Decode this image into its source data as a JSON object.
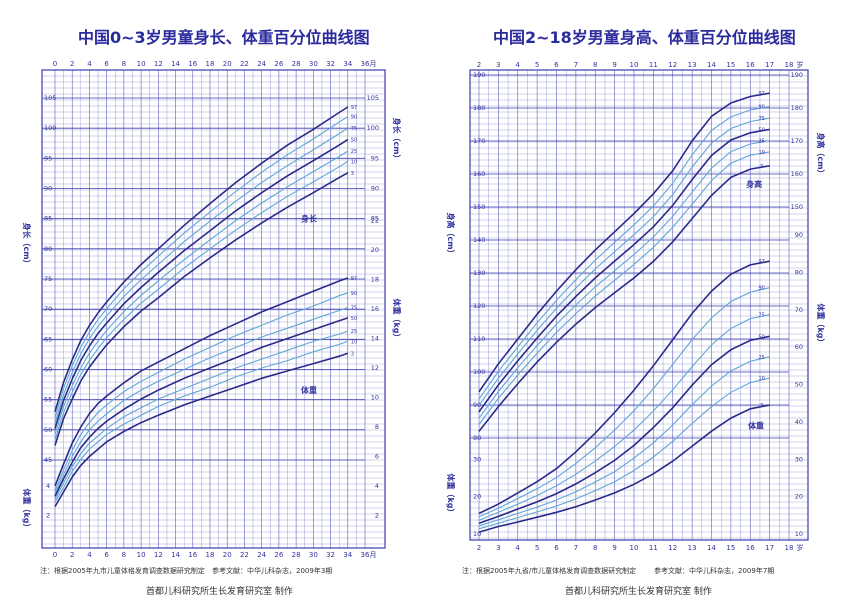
{
  "chart_data": [
    {
      "type": "line",
      "title": "中国0~3岁男童身长、体重百分位曲线图",
      "x_unit": "月",
      "x_ticks": [
        "0",
        "2",
        "4",
        "6",
        "8",
        "10",
        "12",
        "14",
        "16",
        "18",
        "20",
        "22",
        "24",
        "26",
        "28",
        "30",
        "32",
        "34",
        "36"
      ],
      "height_axis_title": "身长（cm）",
      "height_ticks": [
        "45",
        "50",
        "55",
        "60",
        "65",
        "70",
        "75",
        "80",
        "85",
        "90",
        "95",
        "100",
        "105"
      ],
      "weight_axis_title": "体重（kg）",
      "weight_ticks": [
        "2",
        "4",
        "6",
        "8",
        "10",
        "12",
        "14",
        "16",
        "18",
        "20",
        "22"
      ],
      "right_height_ticks": [
        "85",
        "90",
        "95",
        "100",
        "105"
      ],
      "right_weight_ticks": [
        "2",
        "4",
        "6",
        "8",
        "10",
        "12",
        "14",
        "16",
        "18",
        "20",
        "22"
      ],
      "height_series_label": "身长",
      "weight_series_label": "体重",
      "ages": [
        0,
        1,
        2,
        3,
        4,
        5,
        6,
        8,
        10,
        12,
        15,
        18,
        21,
        24,
        27,
        30,
        33,
        34
      ],
      "length_series": [
        {
          "name": "97",
          "values": [
            53.0,
            57.9,
            61.6,
            64.8,
            67.3,
            69.4,
            71.2,
            74.5,
            77.4,
            80.0,
            83.9,
            87.5,
            91.0,
            94.2,
            97.2,
            99.8,
            102.6,
            103.5
          ]
        },
        {
          "name": "90",
          "values": [
            52.0,
            56.9,
            60.6,
            63.7,
            66.2,
            68.3,
            70.1,
            73.4,
            76.2,
            78.8,
            82.6,
            86.1,
            89.5,
            92.7,
            95.6,
            98.2,
            101.0,
            101.9
          ]
        },
        {
          "name": "75",
          "values": [
            51.1,
            55.9,
            59.5,
            62.6,
            65.1,
            67.2,
            68.9,
            72.1,
            74.9,
            77.4,
            81.2,
            84.6,
            87.9,
            91.0,
            93.8,
            96.4,
            99.1,
            100.0
          ]
        },
        {
          "name": "50",
          "values": [
            50.2,
            54.9,
            58.4,
            61.5,
            63.9,
            66.0,
            67.7,
            70.9,
            73.6,
            76.1,
            79.7,
            83.0,
            86.3,
            89.3,
            92.1,
            94.6,
            97.2,
            98.1
          ]
        },
        {
          "name": "25",
          "values": [
            49.2,
            53.9,
            57.3,
            60.3,
            62.7,
            64.7,
            66.5,
            69.6,
            72.3,
            74.7,
            78.2,
            81.5,
            84.7,
            87.6,
            90.3,
            92.8,
            95.3,
            96.2
          ]
        },
        {
          "name": "10",
          "values": [
            48.3,
            52.9,
            56.2,
            59.2,
            61.5,
            63.5,
            65.3,
            68.3,
            71.0,
            73.3,
            76.8,
            80.0,
            83.1,
            86.0,
            88.7,
            91.1,
            93.6,
            94.5
          ]
        },
        {
          "name": "3",
          "values": [
            47.4,
            51.9,
            55.1,
            58.1,
            60.4,
            62.3,
            64.1,
            67.1,
            69.7,
            71.9,
            75.4,
            78.5,
            81.5,
            84.3,
            86.9,
            89.3,
            91.8,
            92.6
          ]
        }
      ],
      "weight_series": [
        {
          "name": "97",
          "values": [
            4.0,
            5.5,
            6.9,
            8.0,
            8.9,
            9.6,
            10.1,
            11.0,
            11.8,
            12.4,
            13.3,
            14.2,
            15.0,
            15.8,
            16.5,
            17.2,
            17.9,
            18.1
          ]
        },
        {
          "name": "90",
          "values": [
            3.7,
            5.1,
            6.4,
            7.5,
            8.3,
            9.0,
            9.5,
            10.4,
            11.1,
            11.7,
            12.6,
            13.4,
            14.2,
            14.9,
            15.6,
            16.2,
            16.9,
            17.1
          ]
        },
        {
          "name": "75",
          "values": [
            3.5,
            4.8,
            6.0,
            7.0,
            7.8,
            8.4,
            8.9,
            9.8,
            10.5,
            11.1,
            11.9,
            12.7,
            13.4,
            14.1,
            14.7,
            15.3,
            15.9,
            16.1
          ]
        },
        {
          "name": "50",
          "values": [
            3.3,
            4.5,
            5.6,
            6.6,
            7.3,
            7.9,
            8.4,
            9.2,
            9.9,
            10.5,
            11.3,
            12.0,
            12.7,
            13.4,
            14.0,
            14.6,
            15.2,
            15.4
          ]
        },
        {
          "name": "25",
          "values": [
            3.1,
            4.2,
            5.3,
            6.2,
            6.9,
            7.4,
            7.9,
            8.7,
            9.3,
            9.9,
            10.6,
            11.3,
            12.0,
            12.6,
            13.2,
            13.8,
            14.3,
            14.5
          ]
        },
        {
          "name": "10",
          "values": [
            2.9,
            3.9,
            5.0,
            5.8,
            6.5,
            7.0,
            7.5,
            8.2,
            8.8,
            9.4,
            10.1,
            10.7,
            11.4,
            12.0,
            12.5,
            13.1,
            13.6,
            13.8
          ]
        },
        {
          "name": "3",
          "values": [
            2.6,
            3.6,
            4.6,
            5.4,
            6.0,
            6.5,
            7.0,
            7.7,
            8.3,
            8.8,
            9.5,
            10.1,
            10.7,
            11.3,
            11.8,
            12.3,
            12.8,
            13.0
          ]
        }
      ],
      "note": "注：根据2005年九市儿童体格发育调查数据研究制定",
      "reference": "参考文献：中华儿科杂志，2009年3期"
    },
    {
      "type": "line",
      "title": "中国2~18岁男童身高、体重百分位曲线图",
      "x_unit": "岁",
      "x_ticks": [
        "2",
        "3",
        "4",
        "5",
        "6",
        "7",
        "8",
        "9",
        "10",
        "11",
        "12",
        "13",
        "14",
        "15",
        "16",
        "17",
        "18"
      ],
      "height_axis_title": "身高（cm）",
      "height_ticks": [
        "80",
        "90",
        "100",
        "110",
        "120",
        "130",
        "140",
        "150",
        "160",
        "170",
        "180",
        "190"
      ],
      "weight_axis_title": "体重（kg）",
      "weight_ticks": [
        "10",
        "20",
        "30",
        "40",
        "50",
        "60",
        "70",
        "80",
        "90"
      ],
      "right_height_ticks": [
        "150",
        "160",
        "170",
        "180",
        "190"
      ],
      "right_weight_ticks": [
        "10",
        "20",
        "30",
        "40",
        "50",
        "60",
        "70",
        "80",
        "90"
      ],
      "height_series_label": "身高",
      "weight_series_label": "体重",
      "ages": [
        2,
        3,
        4,
        5,
        6,
        7,
        8,
        9,
        10,
        11,
        12,
        13,
        14,
        15,
        16,
        17
      ],
      "height_series": [
        {
          "name": "97",
          "values": [
            94.0,
            102.5,
            110.0,
            117.5,
            124.5,
            131.0,
            137.0,
            142.5,
            148.0,
            154.0,
            161.0,
            170.0,
            177.5,
            181.5,
            183.5,
            184.5
          ]
        },
        {
          "name": "90",
          "values": [
            91.8,
            100.2,
            107.6,
            114.9,
            121.7,
            128.0,
            133.9,
            139.3,
            144.6,
            150.3,
            157.2,
            165.8,
            173.2,
            177.3,
            179.4,
            180.4
          ]
        },
        {
          "name": "75",
          "values": [
            89.9,
            98.1,
            105.5,
            112.6,
            119.3,
            125.5,
            131.2,
            136.5,
            141.6,
            147.1,
            153.8,
            162.1,
            169.4,
            173.8,
            175.9,
            176.9
          ]
        },
        {
          "name": "50",
          "values": [
            87.9,
            96.1,
            103.4,
            110.3,
            116.9,
            122.9,
            128.5,
            133.6,
            138.6,
            144.0,
            150.5,
            158.3,
            165.6,
            170.3,
            172.5,
            173.5
          ]
        },
        {
          "name": "25",
          "values": [
            86.0,
            94.1,
            101.3,
            108.0,
            114.5,
            120.3,
            125.8,
            130.7,
            135.6,
            140.9,
            147.2,
            154.5,
            161.8,
            166.8,
            169.1,
            170.1
          ]
        },
        {
          "name": "10",
          "values": [
            84.1,
            92.0,
            99.1,
            105.7,
            112.0,
            117.7,
            123.0,
            127.8,
            132.6,
            137.8,
            143.9,
            150.8,
            158.0,
            163.3,
            165.7,
            166.7
          ]
        },
        {
          "name": "3",
          "values": [
            82.0,
            89.5,
            96.5,
            103.0,
            109.0,
            114.5,
            119.5,
            124.0,
            128.5,
            133.5,
            139.5,
            146.5,
            153.5,
            159.0,
            161.5,
            162.5
          ]
        }
      ],
      "weight_series": [
        {
          "name": "97",
          "values": [
            15.5,
            18.0,
            21.0,
            24.0,
            27.5,
            32.0,
            37.0,
            42.5,
            48.5,
            55.0,
            62.0,
            69.0,
            75.0,
            79.5,
            82.0,
            83.0
          ]
        },
        {
          "name": "90",
          "values": [
            14.6,
            16.9,
            19.5,
            22.1,
            25.1,
            28.9,
            33.1,
            37.8,
            43.0,
            48.9,
            55.4,
            62.0,
            67.8,
            72.2,
            74.7,
            75.9
          ]
        },
        {
          "name": "75",
          "values": [
            13.7,
            15.8,
            18.0,
            20.3,
            22.9,
            26.0,
            29.5,
            33.4,
            37.8,
            42.9,
            48.6,
            54.8,
            60.6,
            65.0,
            67.6,
            68.7
          ]
        },
        {
          "name": "50",
          "values": [
            12.9,
            14.7,
            16.7,
            18.6,
            20.8,
            23.4,
            26.4,
            29.7,
            33.7,
            38.5,
            43.8,
            49.8,
            55.3,
            59.3,
            61.8,
            62.9
          ]
        },
        {
          "name": "25",
          "values": [
            12.2,
            13.8,
            15.5,
            17.2,
            19.1,
            21.3,
            23.9,
            26.7,
            30.3,
            34.4,
            39.2,
            44.6,
            49.6,
            53.6,
            56.2,
            57.4
          ]
        },
        {
          "name": "10",
          "values": [
            11.4,
            12.9,
            14.4,
            15.9,
            17.5,
            19.4,
            21.6,
            24.0,
            27.0,
            30.6,
            34.8,
            39.6,
            44.1,
            47.9,
            50.5,
            51.7
          ]
        },
        {
          "name": "3",
          "values": [
            10.5,
            12.0,
            13.2,
            14.5,
            15.8,
            17.3,
            19.1,
            21.0,
            23.3,
            26.1,
            29.5,
            33.5,
            37.5,
            41.0,
            43.5,
            44.5
          ]
        }
      ],
      "note": "注：根据2005年九省/市儿童体格发育调查数据研究制定",
      "reference": "参考文献：中华儿科杂志，2009年7期"
    }
  ],
  "footer": {
    "maker_left": "首都儿科研究所生长发育研究室  制作",
    "maker_right": "首都儿科研究所生长发育研究室  制作"
  },
  "colors": {
    "grid": "#3b3bb0",
    "dark_curve": "#2a2a8a",
    "light_curve": "#5fa6d6"
  }
}
